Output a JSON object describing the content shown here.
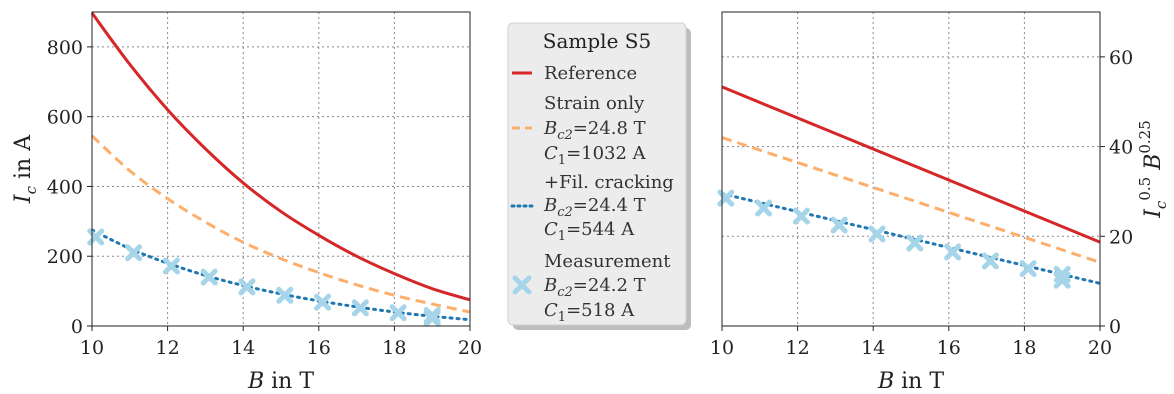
{
  "chart_data": [
    {
      "type": "line",
      "xlabel": "B in T",
      "ylabel": "I_c in A",
      "xlim": [
        10,
        20
      ],
      "ylim": [
        0,
        900
      ],
      "xticks": [
        "10",
        "12",
        "14",
        "16",
        "18",
        "20"
      ],
      "yticks": [
        "0",
        "200",
        "400",
        "600",
        "800"
      ],
      "grid": true,
      "series": [
        {
          "name": "Reference",
          "style": "solid",
          "color": "#d62728",
          "x": [
            10,
            11,
            12,
            13,
            14,
            15,
            16,
            17,
            18,
            19,
            20
          ],
          "y": [
            897,
            750,
            620,
            508,
            410,
            328,
            260,
            200,
            150,
            107,
            75
          ]
        },
        {
          "name": "Strain only",
          "style": "dashed",
          "color": "#fdae6b",
          "x": [
            10,
            11,
            12,
            13,
            14,
            15,
            16,
            17,
            18,
            19,
            20
          ],
          "y": [
            545,
            445,
            365,
            298,
            240,
            193,
            153,
            118,
            88,
            63,
            40
          ]
        },
        {
          "name": "+Fil. cracking",
          "style": "dotted",
          "color": "#1f77b4",
          "x": [
            10,
            11,
            12,
            13,
            14,
            15,
            16,
            17,
            18,
            19,
            20
          ],
          "y": [
            275,
            222,
            180,
            145,
            116,
            92,
            72,
            55,
            40,
            28,
            18
          ]
        },
        {
          "name": "Measurement",
          "style": "markers",
          "color": "#a6d5ea",
          "x": [
            10.1,
            11.1,
            12.1,
            13.1,
            14.1,
            15.1,
            16.1,
            17.1,
            18.1,
            19.0,
            19.0
          ],
          "y": [
            255,
            210,
            172,
            140,
            112,
            88,
            68,
            52,
            38,
            30,
            22
          ]
        }
      ]
    },
    {
      "type": "line",
      "xlabel": "B in T",
      "ylabel": "I_c^0.5 B^0.25",
      "xlim": [
        10,
        20
      ],
      "ylim": [
        0,
        70
      ],
      "xticks": [
        "10",
        "12",
        "14",
        "16",
        "18",
        "20"
      ],
      "yticks": [
        "0",
        "20",
        "40",
        "60"
      ],
      "yaxis_side": "right",
      "grid": true,
      "series": [
        {
          "name": "Reference",
          "style": "solid",
          "color": "#d62728",
          "x": [
            10,
            20
          ],
          "y": [
            53.3,
            18.7
          ]
        },
        {
          "name": "Strain only",
          "style": "dashed",
          "color": "#fdae6b",
          "x": [
            10,
            20
          ],
          "y": [
            42.0,
            14.2
          ]
        },
        {
          "name": "+Fil. cracking",
          "style": "dotted",
          "color": "#1f77b4",
          "x": [
            10,
            20
          ],
          "y": [
            29.5,
            9.5
          ]
        },
        {
          "name": "Measurement",
          "style": "markers",
          "color": "#a6d5ea",
          "x": [
            10.1,
            11.1,
            12.1,
            13.1,
            14.1,
            15.1,
            16.1,
            17.1,
            18.1,
            19.0,
            19.0
          ],
          "y": [
            28.5,
            26.3,
            24.5,
            22.5,
            20.5,
            18.5,
            16.5,
            14.5,
            12.8,
            11.5,
            10.2
          ]
        }
      ]
    }
  ],
  "legend": {
    "title": "Sample S5",
    "entries": [
      {
        "key": "reference",
        "lines": [
          "Reference"
        ]
      },
      {
        "key": "strain",
        "lines": [
          "Strain only",
          "B_c2=24.8 T",
          "C_1=1032 A"
        ]
      },
      {
        "key": "cracking",
        "lines": [
          "+Fil. cracking",
          "B_c2=24.4 T",
          "C_1=544 A"
        ]
      },
      {
        "key": "measurement",
        "lines": [
          "Measurement",
          "B_c2=24.2 T",
          "C_1=518 A"
        ]
      }
    ]
  }
}
